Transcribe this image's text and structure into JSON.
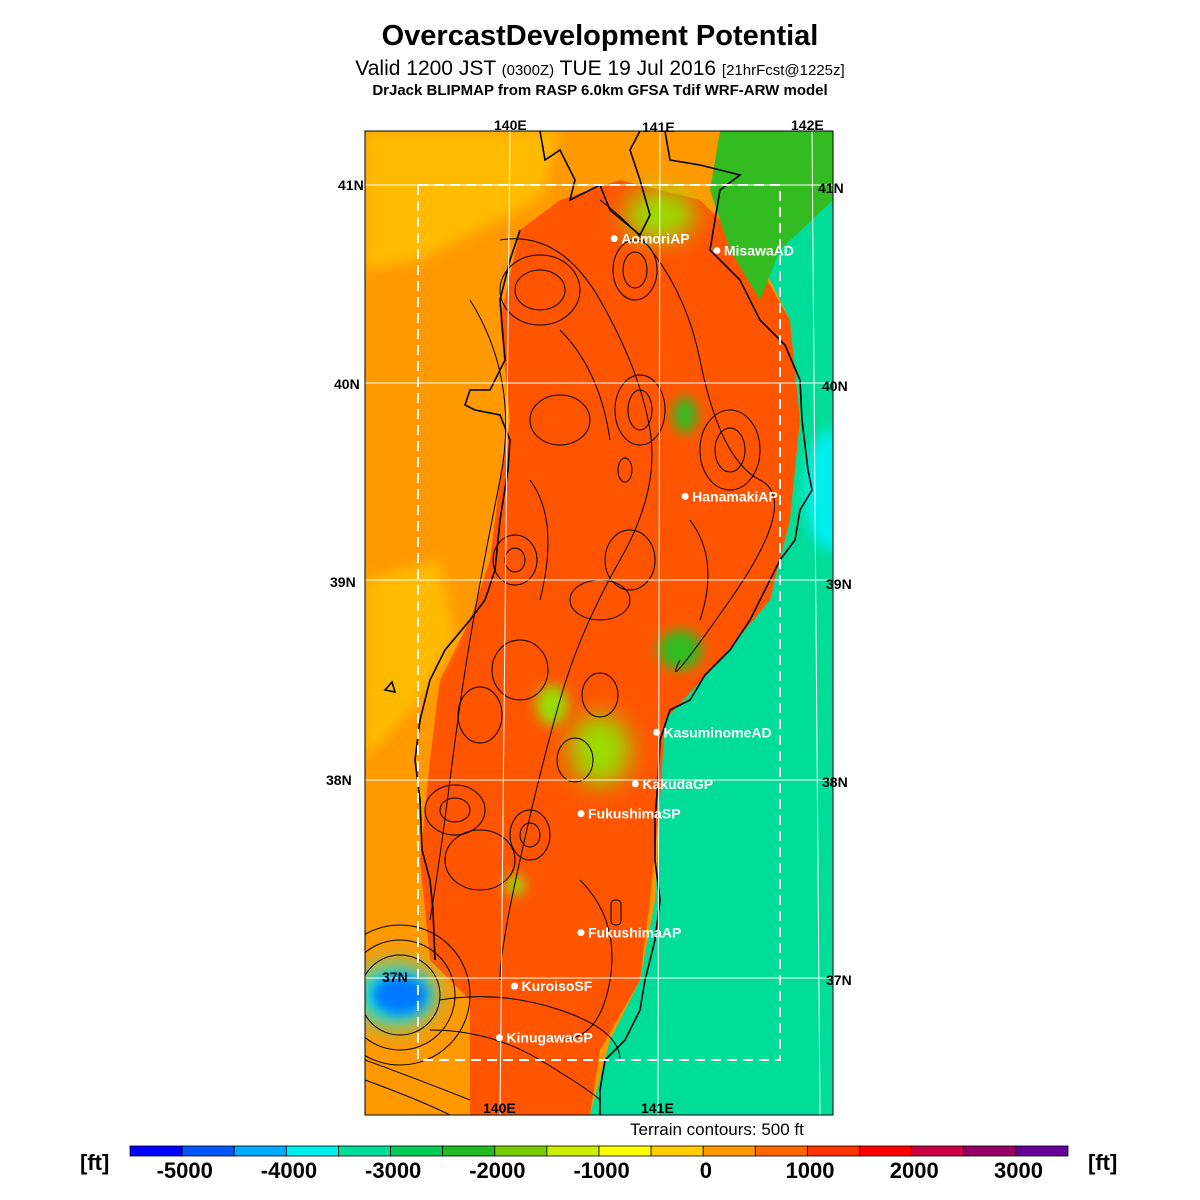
{
  "header": {
    "title": "OvercastDevelopment Potential",
    "valid_main": "Valid 1200 JST",
    "valid_utc": "(0300Z)",
    "valid_date": "TUE 19 Jul 2016",
    "forecast": "[21hrFcst@1225z]",
    "model": "DrJack BLIPMAP from RASP 6.0km GFSA Tdif WRF-ARW model"
  },
  "axes": {
    "lon_top": [
      "140E",
      "141E",
      "142E"
    ],
    "lon_bottom": [
      "140E",
      "141E"
    ],
    "lat_left": [
      "41N",
      "40N",
      "39N",
      "38N",
      "37N"
    ],
    "lat_right": [
      "41N",
      "40N",
      "39N",
      "38N",
      "37N"
    ]
  },
  "stations": [
    {
      "name": "AomoriAP",
      "lon": 140.69,
      "lat": 40.73
    },
    {
      "name": "MisawaAD",
      "lon": 141.37,
      "lat": 40.67
    },
    {
      "name": "HanamakiAP",
      "lon": 141.16,
      "lat": 39.43
    },
    {
      "name": "KasuminomeAD",
      "lon": 140.97,
      "lat": 38.24
    },
    {
      "name": "KakudaGP",
      "lon": 140.83,
      "lat": 37.98
    },
    {
      "name": "FukushimaSP",
      "lon": 140.47,
      "lat": 37.83
    },
    {
      "name": "FukushimaAP",
      "lon": 140.47,
      "lat": 37.23
    },
    {
      "name": "KuroisoSF",
      "lon": 140.03,
      "lat": 36.96
    },
    {
      "name": "KinugawaGP",
      "lon": 139.93,
      "lat": 36.7
    }
  ],
  "terrain_note": "Terrain contours: 500 ft",
  "colorbar": {
    "unit": "[ft]",
    "labels": [
      "-5000",
      "-4000",
      "-3000",
      "-2000",
      "-1000",
      "0",
      "1000",
      "2000",
      "3000"
    ],
    "colors": [
      "#0000ff",
      "#0055ff",
      "#00aaff",
      "#00f0f0",
      "#00dd99",
      "#00cc55",
      "#22bb22",
      "#77cc00",
      "#ccee00",
      "#ffff00",
      "#ffcc00",
      "#ff9900",
      "#ff6600",
      "#ff3300",
      "#ff0000",
      "#cc0044",
      "#990066",
      "#660099"
    ]
  },
  "map_colors": {
    "orange": "#ff9900",
    "red_orange": "#ff5500",
    "yellow_orange": "#ffbb00",
    "sea_green": "#00dd99",
    "green": "#33bb22",
    "lime": "#99dd00",
    "cyan": "#00eeee",
    "blue": "#0077ff"
  }
}
